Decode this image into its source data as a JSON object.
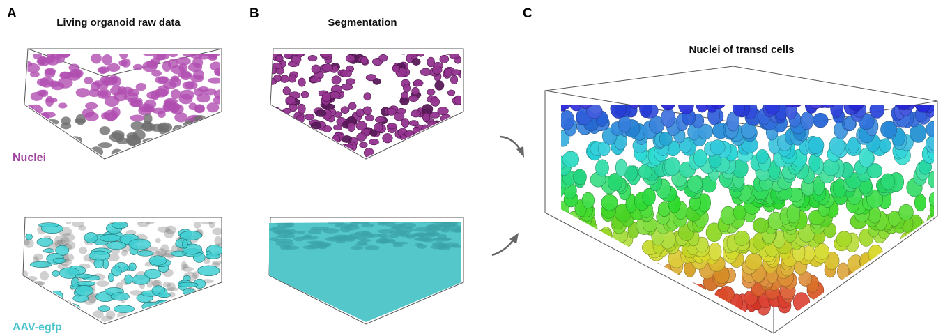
{
  "panels": [
    {
      "letter": "A",
      "title": "Living organoid raw data",
      "labels": [
        "Nuclei",
        "AAV-egfp"
      ]
    },
    {
      "letter": "B",
      "title": "Segmentation"
    },
    {
      "letter": "C",
      "title": "Nuclei of transd cells"
    }
  ]
}
